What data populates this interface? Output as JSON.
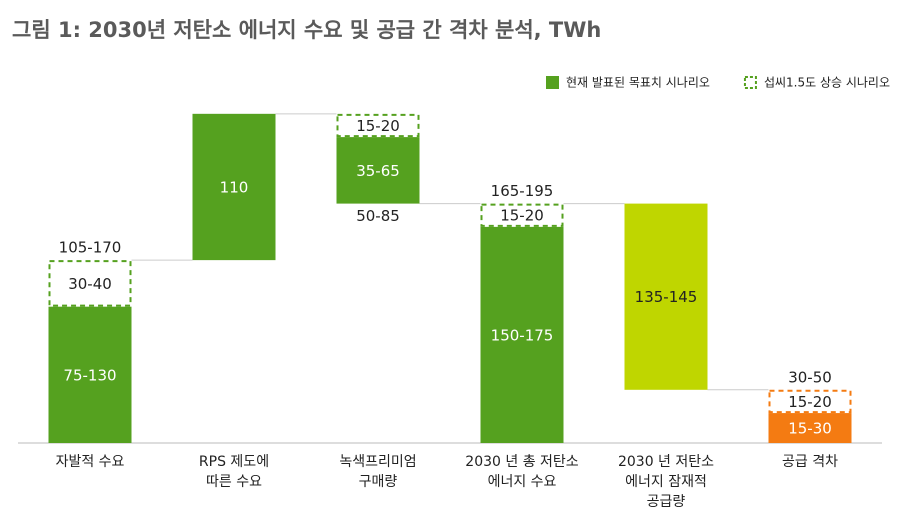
{
  "chart_data": {
    "type": "waterfall",
    "title": "그림 1: 2030년 저탄소 에너지 수요 및 공급 간 격차 분석, TWh",
    "legend_position": "top-right",
    "legend": [
      {
        "name": "현재 발표된 목표치 시나리오",
        "color": "#55a11f",
        "style": "solid"
      },
      {
        "name": "섭씨1.5도 상승 시나리오",
        "color": "#55a11f",
        "style": "dashed"
      }
    ],
    "ylim": [
      0,
      250
    ],
    "bars": [
      {
        "category": [
          "자발적 수요"
        ],
        "step": "increase",
        "total_label": "105-170",
        "total_label_position": "top",
        "segments": [
          {
            "value": 102.5,
            "label": "75-130",
            "style": "solid",
            "color": "#55a11f"
          },
          {
            "value": 35,
            "label": "30-40",
            "style": "dashed",
            "color": "#55a11f"
          }
        ]
      },
      {
        "category": [
          "RPS 제도에",
          "따른 수요"
        ],
        "step": "increase",
        "segments": [
          {
            "value": 110,
            "label": "110",
            "style": "solid",
            "color": "#55a11f"
          }
        ]
      },
      {
        "category": [
          "녹색프리미엄",
          "구매량"
        ],
        "step": "decrease",
        "total_label": "50-85",
        "total_label_position": "bottom",
        "segments": [
          {
            "value": 17.5,
            "label": "15-20",
            "style": "dashed",
            "color": "#55a11f"
          },
          {
            "value": 50,
            "label": "35-65",
            "style": "solid",
            "color": "#55a11f"
          }
        ]
      },
      {
        "category": [
          "2030 년 총 저탄소",
          "에너지 수요"
        ],
        "step": "total",
        "total_label": "165-195",
        "total_label_position": "top",
        "segments": [
          {
            "value": 162.5,
            "label": "150-175",
            "style": "solid",
            "color": "#55a11f"
          },
          {
            "value": 17.5,
            "label": "15-20",
            "style": "dashed",
            "color": "#55a11f"
          }
        ]
      },
      {
        "category": [
          "2030 년 저탄소",
          "에너지 잠재적",
          "공급량"
        ],
        "step": "decrease",
        "segments": [
          {
            "value": 140,
            "label": "135-145",
            "style": "solid",
            "color": "#bfd600"
          }
        ]
      },
      {
        "category": [
          "공급 격차"
        ],
        "step": "total",
        "total_label": "30-50",
        "total_label_position": "top",
        "segments": [
          {
            "value": 22.5,
            "label": "15-30",
            "style": "solid",
            "color": "#f47b12"
          },
          {
            "value": 17.5,
            "label": "15-20",
            "style": "dashed",
            "color": "#f47b12"
          }
        ]
      }
    ]
  }
}
